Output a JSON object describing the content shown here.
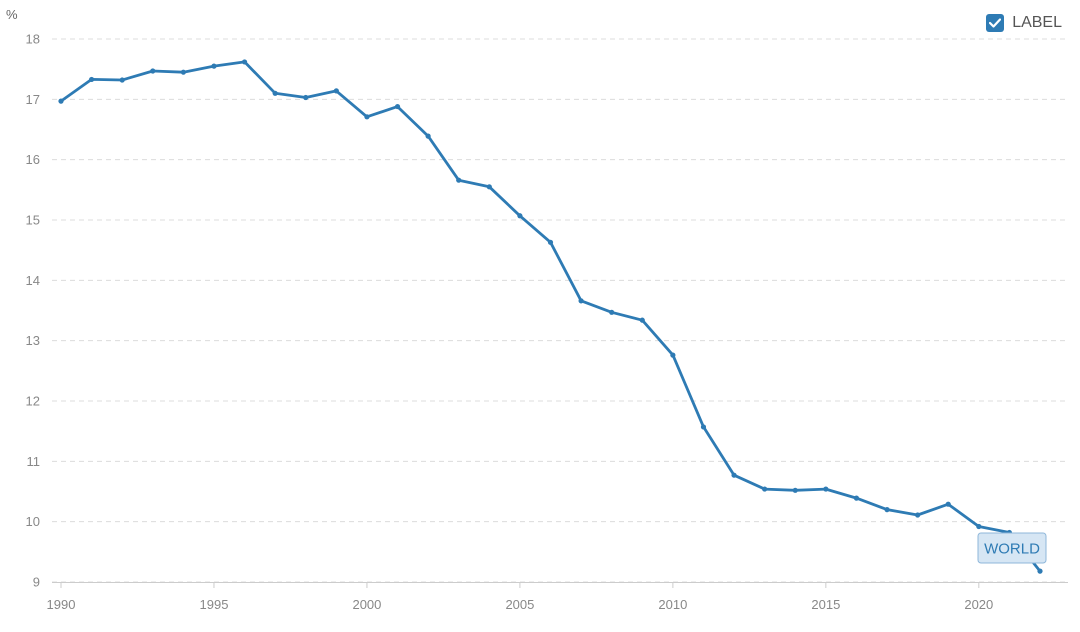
{
  "chart_data": {
    "type": "line",
    "unit": "%",
    "legend_label": "LABEL",
    "legend_checked": true,
    "legend_position": "top-right",
    "series_label": "WORLD",
    "color": "#2e7bb4",
    "grid": true,
    "ylim": [
      9,
      18
    ],
    "yticks": [
      9,
      10,
      11,
      12,
      13,
      14,
      15,
      16,
      17,
      18
    ],
    "xlim": [
      1990,
      2022
    ],
    "xticks": [
      1990,
      1995,
      2000,
      2005,
      2010,
      2015,
      2020
    ],
    "x": [
      1990,
      1991,
      1992,
      1993,
      1994,
      1995,
      1996,
      1997,
      1998,
      1999,
      2000,
      2001,
      2002,
      2003,
      2004,
      2005,
      2006,
      2007,
      2008,
      2009,
      2010,
      2011,
      2012,
      2013,
      2014,
      2015,
      2016,
      2017,
      2018,
      2019,
      2020,
      2021,
      2022
    ],
    "series": [
      {
        "name": "WORLD",
        "values": [
          16.97,
          17.33,
          17.32,
          17.47,
          17.45,
          17.55,
          17.62,
          17.1,
          17.03,
          17.14,
          16.71,
          16.88,
          16.39,
          15.66,
          15.55,
          15.07,
          14.63,
          13.66,
          13.47,
          13.34,
          12.76,
          11.57,
          10.77,
          10.54,
          10.52,
          10.54,
          10.39,
          10.2,
          10.11,
          10.29,
          9.92,
          9.82,
          9.18
        ]
      }
    ]
  }
}
